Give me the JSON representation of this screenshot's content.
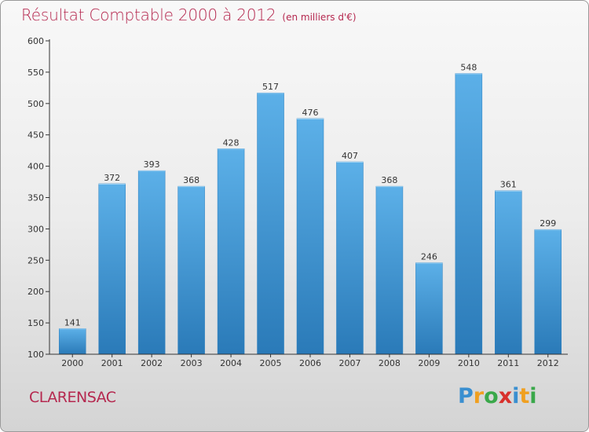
{
  "chart_data": {
    "type": "bar",
    "title": "Résultat Comptable 2000 à 2012",
    "unit_label": "(en milliers d'€)",
    "categories": [
      "2000",
      "2001",
      "2002",
      "2003",
      "2004",
      "2005",
      "2006",
      "2007",
      "2008",
      "2009",
      "2010",
      "2011",
      "2012"
    ],
    "values": [
      141,
      372,
      393,
      368,
      428,
      517,
      476,
      407,
      368,
      246,
      548,
      361,
      299
    ],
    "ylim": [
      100,
      600
    ],
    "yticks": [
      100,
      150,
      200,
      250,
      300,
      350,
      400,
      450,
      500,
      550,
      600
    ],
    "xlabel": "",
    "ylabel": "",
    "grid": false
  },
  "commune": "CLARENSAC",
  "logo": {
    "letters": [
      "P",
      "r",
      "o",
      "x",
      "i",
      "t",
      "i"
    ],
    "colors": [
      "#3a8fd0",
      "#f0a020",
      "#3aa84a",
      "#d8302c",
      "#3a8fd0",
      "#f0a020",
      "#3aa84a"
    ]
  },
  "colors": {
    "accent": "#b5284f",
    "bar_top": "#5cb0e8",
    "bar_bottom": "#2a7ab8",
    "axis": "#333333"
  }
}
